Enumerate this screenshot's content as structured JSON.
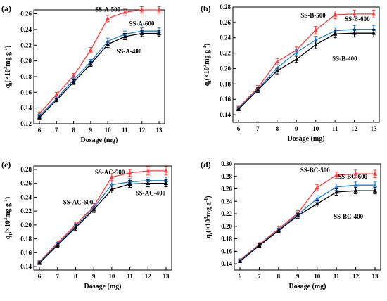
{
  "colors": {
    "SS-A-500": "#ff3b3b",
    "SS-A-600": "#1e7fd8",
    "SS-A-400": "#000000"
  },
  "chart_data": [
    {
      "type": "line",
      "panel_label": "(a)",
      "xlabel": "Dosage (mg)",
      "ylabel": "q_t(×10^3mg g^-1)",
      "x": [
        6,
        7,
        8,
        9,
        10,
        11,
        12,
        13
      ],
      "xlim": [
        6,
        13
      ],
      "ylim": [
        0.12,
        0.265
      ],
      "yticks": [
        0.12,
        0.14,
        0.16,
        0.18,
        0.2,
        0.22,
        0.24,
        0.26
      ],
      "series": [
        {
          "name": "SS-A-500",
          "color": "#ff3b3b",
          "values": [
            0.133,
            0.157,
            0.181,
            0.214,
            0.254,
            0.262,
            0.265,
            0.265
          ],
          "errors": [
            0.002,
            0.003,
            0.003,
            0.003,
            0.004,
            0.004,
            0.004,
            0.004
          ]
        },
        {
          "name": "SS-A-600",
          "color": "#1e7fd8",
          "values": [
            0.13,
            0.152,
            0.176,
            0.199,
            0.225,
            0.234,
            0.238,
            0.238
          ],
          "errors": [
            0.002,
            0.002,
            0.003,
            0.003,
            0.004,
            0.004,
            0.004,
            0.004
          ]
        },
        {
          "name": "SS-A-400",
          "color": "#000000",
          "values": [
            0.128,
            0.15,
            0.173,
            0.196,
            0.221,
            0.231,
            0.235,
            0.235
          ],
          "errors": [
            0.002,
            0.002,
            0.003,
            0.003,
            0.004,
            0.004,
            0.004,
            0.004
          ]
        }
      ]
    },
    {
      "type": "line",
      "panel_label": "(b)",
      "xlabel": "Dosage (mg)",
      "ylabel": "q_t(×10^3mg g^-1)",
      "x": [
        6,
        7,
        8,
        9,
        10,
        11,
        12,
        13
      ],
      "xlim": [
        6,
        13
      ],
      "ylim": [
        0.13,
        0.28
      ],
      "yticks": [
        0.14,
        0.16,
        0.18,
        0.2,
        0.22,
        0.24,
        0.26,
        0.28
      ],
      "series": [
        {
          "name": "SS-B-500",
          "color": "#ff3b3b",
          "values": [
            0.149,
            0.175,
            0.209,
            0.224,
            0.25,
            0.27,
            0.271,
            0.271
          ],
          "errors": [
            0.002,
            0.003,
            0.004,
            0.004,
            0.005,
            0.005,
            0.005,
            0.005
          ]
        },
        {
          "name": "SS-B-600",
          "color": "#1e7fd8",
          "values": [
            0.148,
            0.173,
            0.201,
            0.221,
            0.237,
            0.249,
            0.251,
            0.251
          ],
          "errors": [
            0.002,
            0.003,
            0.004,
            0.004,
            0.005,
            0.005,
            0.005,
            0.005
          ]
        },
        {
          "name": "SS-B-400",
          "color": "#000000",
          "values": [
            0.147,
            0.172,
            0.197,
            0.212,
            0.231,
            0.245,
            0.246,
            0.246
          ],
          "errors": [
            0.002,
            0.003,
            0.004,
            0.004,
            0.005,
            0.005,
            0.005,
            0.005
          ]
        }
      ]
    },
    {
      "type": "line",
      "panel_label": "(c)",
      "xlabel": "Dosage (mg)",
      "ylabel": "q_t(×10^3mg g^-1)",
      "x": [
        6,
        7,
        8,
        9,
        10,
        11,
        12,
        13
      ],
      "xlim": [
        6,
        13
      ],
      "ylim": [
        0.135,
        0.285
      ],
      "yticks": [
        0.14,
        0.16,
        0.18,
        0.2,
        0.22,
        0.24,
        0.26,
        0.28
      ],
      "series": [
        {
          "name": "SS-AC-500",
          "color": "#ff3b3b",
          "values": [
            0.147,
            0.174,
            0.2,
            0.227,
            0.269,
            0.275,
            0.278,
            0.278
          ],
          "errors": [
            0.002,
            0.003,
            0.004,
            0.004,
            0.005,
            0.005,
            0.006,
            0.006
          ]
        },
        {
          "name": "SS-AC-600",
          "color": "#1e7fd8",
          "values": [
            0.146,
            0.172,
            0.198,
            0.225,
            0.258,
            0.262,
            0.264,
            0.264
          ],
          "errors": [
            0.002,
            0.003,
            0.004,
            0.004,
            0.005,
            0.005,
            0.005,
            0.005
          ]
        },
        {
          "name": "SS-AC-400",
          "color": "#000000",
          "values": [
            0.145,
            0.171,
            0.196,
            0.222,
            0.251,
            0.259,
            0.26,
            0.26
          ],
          "errors": [
            0.002,
            0.003,
            0.004,
            0.004,
            0.005,
            0.005,
            0.005,
            0.005
          ]
        }
      ]
    },
    {
      "type": "line",
      "panel_label": "(d)",
      "xlabel": "Dosage (mg)",
      "ylabel": "q_t(×10^3mg g^-1)",
      "x": [
        6,
        7,
        8,
        9,
        10,
        11,
        12,
        13
      ],
      "xlim": [
        6,
        13
      ],
      "ylim": [
        0.13,
        0.3
      ],
      "yticks": [
        0.14,
        0.16,
        0.18,
        0.2,
        0.22,
        0.24,
        0.26,
        0.28,
        0.3
      ],
      "series": [
        {
          "name": "SS-BC-500",
          "color": "#ff3b3b",
          "values": [
            0.146,
            0.171,
            0.196,
            0.221,
            0.262,
            0.282,
            0.284,
            0.284
          ],
          "errors": [
            0.002,
            0.003,
            0.003,
            0.004,
            0.005,
            0.005,
            0.006,
            0.006
          ]
        },
        {
          "name": "SS-BC-600",
          "color": "#1e7fd8",
          "values": [
            0.145,
            0.17,
            0.194,
            0.219,
            0.244,
            0.263,
            0.266,
            0.266
          ],
          "errors": [
            0.002,
            0.003,
            0.003,
            0.004,
            0.005,
            0.005,
            0.005,
            0.005
          ]
        },
        {
          "name": "SS-BC-400",
          "color": "#000000",
          "values": [
            0.144,
            0.169,
            0.193,
            0.217,
            0.236,
            0.255,
            0.257,
            0.257
          ],
          "errors": [
            0.002,
            0.003,
            0.003,
            0.004,
            0.005,
            0.005,
            0.005,
            0.005
          ]
        }
      ]
    }
  ]
}
